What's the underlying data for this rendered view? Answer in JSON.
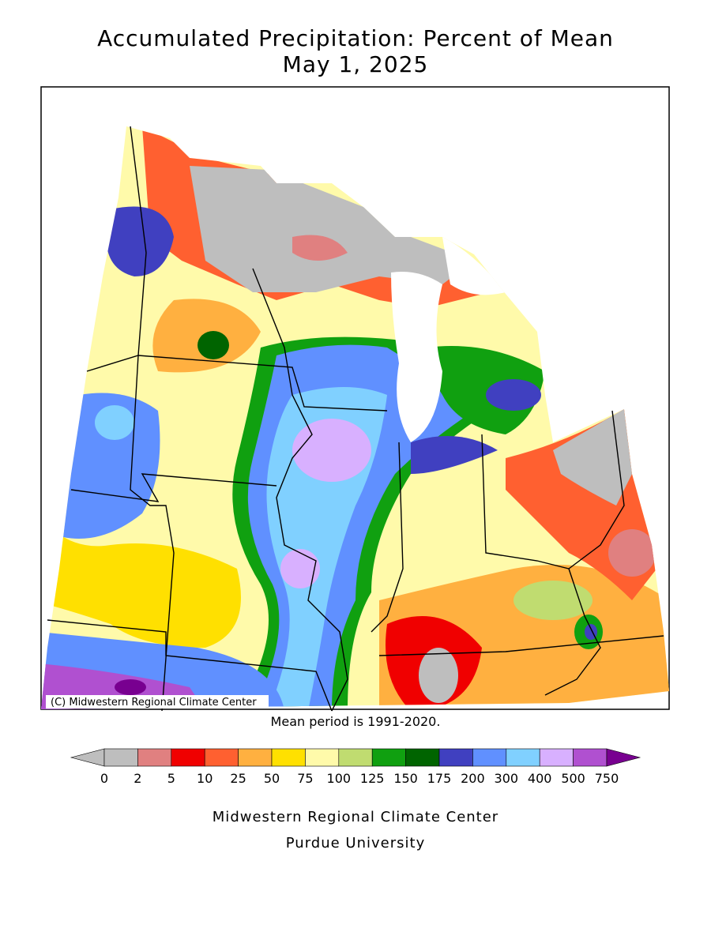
{
  "header": {
    "title": "Accumulated Precipitation: Percent of Mean",
    "date": "May 1, 2025"
  },
  "map": {
    "copyright": "(C) Midwestern Regional Climate Center",
    "note": "Mean period is 1991-2020."
  },
  "legend": {
    "ticks": [
      0,
      2,
      5,
      10,
      25,
      50,
      75,
      100,
      125,
      150,
      175,
      200,
      300,
      400,
      500,
      750
    ],
    "colors": [
      "#bebebe",
      "#bebebe",
      "#e08080",
      "#f00000",
      "#ff6030",
      "#ffb040",
      "#ffe000",
      "#fffaaa",
      "#c0dc70",
      "#10a010",
      "#006400",
      "#4040c0",
      "#6090ff",
      "#80d0ff",
      "#d8b0ff",
      "#b050d0",
      "#780090"
    ]
  },
  "footer": {
    "line1": "Midwestern Regional Climate Center",
    "line2": "Purdue University"
  }
}
